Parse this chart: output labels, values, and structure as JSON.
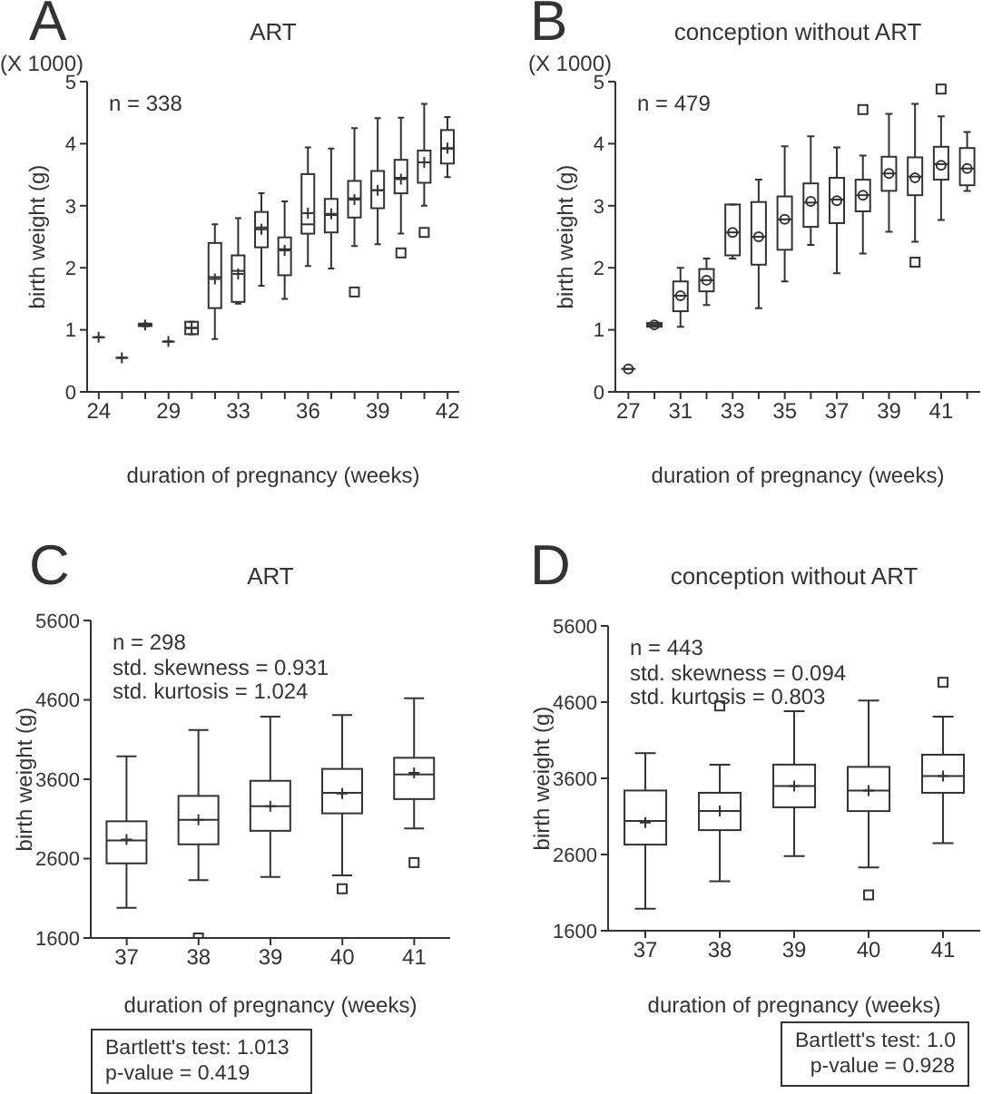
{
  "chart_data": [
    {
      "type": "box",
      "title": "ART",
      "xlabel": "duration of pregnancy (weeks)",
      "ylabel": "birth weight (g)",
      "annotations": [
        "A",
        "(X 1000)",
        "n = 338"
      ],
      "marker": "cross",
      "ylim": [
        0,
        5
      ],
      "yticks": [
        0,
        1,
        2,
        3,
        4,
        5
      ],
      "categories": [
        "24",
        null,
        null,
        "29",
        null,
        null,
        "33",
        null,
        null,
        "36",
        null,
        null,
        "39",
        null,
        null,
        "42"
      ],
      "boxes": [
        {
          "low": 0.88,
          "q1": 0.88,
          "median": 0.88,
          "q3": 0.88,
          "high": 0.88,
          "mean": 0.88
        },
        {
          "low": 0.55,
          "q1": 0.55,
          "median": 0.55,
          "q3": 0.55,
          "high": 0.55,
          "mean": 0.55
        },
        {
          "low": 1.06,
          "q1": 1.06,
          "median": 1.08,
          "q3": 1.1,
          "high": 1.1,
          "mean": 1.08
        },
        {
          "low": 0.81,
          "q1": 0.81,
          "median": 0.81,
          "q3": 0.81,
          "high": 0.81,
          "mean": 0.81
        },
        {
          "low": 0.93,
          "q1": 0.93,
          "median": 1.03,
          "q3": 1.13,
          "high": 1.13,
          "mean": 1.03
        },
        {
          "low": 0.85,
          "q1": 1.35,
          "median": 1.85,
          "q3": 2.4,
          "high": 2.7,
          "mean": 1.82
        },
        {
          "low": 1.42,
          "q1": 1.45,
          "median": 1.95,
          "q3": 2.2,
          "high": 2.8,
          "mean": 1.9
        },
        {
          "low": 1.71,
          "q1": 2.33,
          "median": 2.65,
          "q3": 2.9,
          "high": 3.2,
          "mean": 2.62
        },
        {
          "low": 1.5,
          "q1": 1.88,
          "median": 2.3,
          "q3": 2.49,
          "high": 3.07,
          "mean": 2.28
        },
        {
          "low": 2.03,
          "q1": 2.55,
          "median": 2.7,
          "q3": 3.51,
          "high": 3.94,
          "mean": 2.88
        },
        {
          "low": 1.99,
          "q1": 2.57,
          "median": 2.85,
          "q3": 3.11,
          "high": 3.92,
          "mean": 2.87
        },
        {
          "low": 2.35,
          "q1": 2.81,
          "median": 3.12,
          "q3": 3.4,
          "high": 4.25,
          "mean": 3.1,
          "outliers": [
            1.61
          ]
        },
        {
          "low": 2.38,
          "q1": 2.96,
          "median": 3.25,
          "q3": 3.56,
          "high": 4.41,
          "mean": 3.25
        },
        {
          "low": 2.55,
          "q1": 3.2,
          "median": 3.45,
          "q3": 3.74,
          "high": 4.42,
          "mean": 3.43,
          "outliers": [
            2.24
          ]
        },
        {
          "low": 3.0,
          "q1": 3.37,
          "median": 3.7,
          "q3": 3.89,
          "high": 4.64,
          "mean": 3.7,
          "outliers": [
            2.57
          ]
        },
        {
          "low": 3.46,
          "q1": 3.68,
          "median": 3.92,
          "q3": 4.22,
          "high": 4.43,
          "mean": 3.93
        }
      ]
    },
    {
      "type": "box",
      "title": "conception without ART",
      "xlabel": "duration of pregnancy (weeks)",
      "ylabel": "birth weight (g)",
      "annotations": [
        "B",
        "(X 1000)",
        "n = 479"
      ],
      "marker": "circle",
      "ylim": [
        0,
        5
      ],
      "yticks": [
        0,
        1,
        2,
        3,
        4,
        5
      ],
      "categories": [
        "27",
        null,
        "31",
        null,
        "33",
        null,
        "35",
        null,
        "37",
        null,
        "39",
        null,
        "41",
        null
      ],
      "boxes": [
        {
          "low": 0.37,
          "q1": 0.37,
          "median": 0.37,
          "q3": 0.37,
          "high": 0.37,
          "mean": 0.37
        },
        {
          "low": 1.05,
          "q1": 1.05,
          "median": 1.08,
          "q3": 1.11,
          "high": 1.11,
          "mean": 1.08
        },
        {
          "low": 1.05,
          "q1": 1.3,
          "median": 1.55,
          "q3": 1.78,
          "high": 2.0,
          "mean": 1.55
        },
        {
          "low": 1.4,
          "q1": 1.62,
          "median": 1.8,
          "q3": 1.98,
          "high": 2.15,
          "mean": 1.8
        },
        {
          "low": 2.15,
          "q1": 2.2,
          "median": 2.57,
          "q3": 3.02,
          "high": 3.02,
          "mean": 2.57
        },
        {
          "low": 1.35,
          "q1": 2.05,
          "median": 2.5,
          "q3": 3.06,
          "high": 3.42,
          "mean": 2.5
        },
        {
          "low": 1.78,
          "q1": 2.29,
          "median": 2.78,
          "q3": 3.15,
          "high": 3.96,
          "mean": 2.78
        },
        {
          "low": 2.37,
          "q1": 2.66,
          "median": 3.05,
          "q3": 3.36,
          "high": 4.12,
          "mean": 3.07
        },
        {
          "low": 1.91,
          "q1": 2.72,
          "median": 3.1,
          "q3": 3.45,
          "high": 3.94,
          "mean": 3.08
        },
        {
          "low": 2.23,
          "q1": 2.91,
          "median": 3.17,
          "q3": 3.42,
          "high": 3.81,
          "mean": 3.17,
          "outliers": [
            4.55
          ]
        },
        {
          "low": 2.58,
          "q1": 3.24,
          "median": 3.52,
          "q3": 3.79,
          "high": 4.48,
          "mean": 3.52
        },
        {
          "low": 2.42,
          "q1": 3.17,
          "median": 3.47,
          "q3": 3.78,
          "high": 4.64,
          "mean": 3.45,
          "outliers": [
            2.09
          ]
        },
        {
          "low": 2.77,
          "q1": 3.42,
          "median": 3.67,
          "q3": 3.95,
          "high": 4.44,
          "mean": 3.65,
          "outliers": [
            4.88
          ]
        },
        {
          "low": 3.24,
          "q1": 3.33,
          "median": 3.6,
          "q3": 3.93,
          "high": 4.19,
          "mean": 3.6
        }
      ]
    },
    {
      "type": "box",
      "title": "ART",
      "xlabel": "duration of pregnancy (weeks)",
      "ylabel": "birth weight (g)",
      "annotations": [
        "C",
        "n = 298",
        "std. skewness = 0.931",
        "std. kurtosis = 1.024",
        "Bartlett's test: 1.013",
        "p-value = 0.419"
      ],
      "marker": "cross",
      "ylim": [
        1600,
        5600
      ],
      "yticks": [
        1600,
        2600,
        3600,
        4600,
        5600
      ],
      "categories": [
        "37",
        "38",
        "39",
        "40",
        "41"
      ],
      "boxes": [
        {
          "low": 1980,
          "q1": 2540,
          "median": 2830,
          "q3": 3070,
          "high": 3890,
          "mean": 2840
        },
        {
          "low": 2330,
          "q1": 2780,
          "median": 3090,
          "q3": 3390,
          "high": 4220,
          "mean": 3090,
          "outliers": [
            1600
          ]
        },
        {
          "low": 2370,
          "q1": 2950,
          "median": 3260,
          "q3": 3580,
          "high": 4390,
          "mean": 3260
        },
        {
          "low": 2390,
          "q1": 3170,
          "median": 3430,
          "q3": 3730,
          "high": 4410,
          "mean": 3420,
          "outliers": [
            2220
          ]
        },
        {
          "low": 2980,
          "q1": 3350,
          "median": 3660,
          "q3": 3870,
          "high": 4620,
          "mean": 3680,
          "outliers": [
            2550
          ]
        }
      ]
    },
    {
      "type": "box",
      "title": "conception without ART",
      "xlabel": "duration of pregnancy (weeks)",
      "ylabel": "birth weight (g)",
      "annotations": [
        "D",
        "n = 443",
        "std. skewness = 0.094",
        "std. kurtosis = 0.803",
        "Bartlett's test: 1.0",
        "p-value = 0.928"
      ],
      "marker": "cross",
      "ylim": [
        1600,
        5600
      ],
      "yticks": [
        1600,
        2600,
        3600,
        4600,
        5600
      ],
      "categories": [
        "37",
        "38",
        "39",
        "40",
        "41"
      ],
      "boxes": [
        {
          "low": 1890,
          "q1": 2730,
          "median": 3040,
          "q3": 3440,
          "high": 3930,
          "mean": 3020
        },
        {
          "low": 2250,
          "q1": 2920,
          "median": 3170,
          "q3": 3410,
          "high": 3780,
          "mean": 3170,
          "outliers": [
            4550
          ]
        },
        {
          "low": 2580,
          "q1": 3220,
          "median": 3500,
          "q3": 3780,
          "high": 4480,
          "mean": 3500
        },
        {
          "low": 2430,
          "q1": 3170,
          "median": 3440,
          "q3": 3750,
          "high": 4620,
          "mean": 3440,
          "outliers": [
            2070
          ]
        },
        {
          "low": 2750,
          "q1": 3410,
          "median": 3630,
          "q3": 3910,
          "high": 4410,
          "mean": 3630,
          "outliers": [
            4860
          ]
        }
      ]
    }
  ]
}
